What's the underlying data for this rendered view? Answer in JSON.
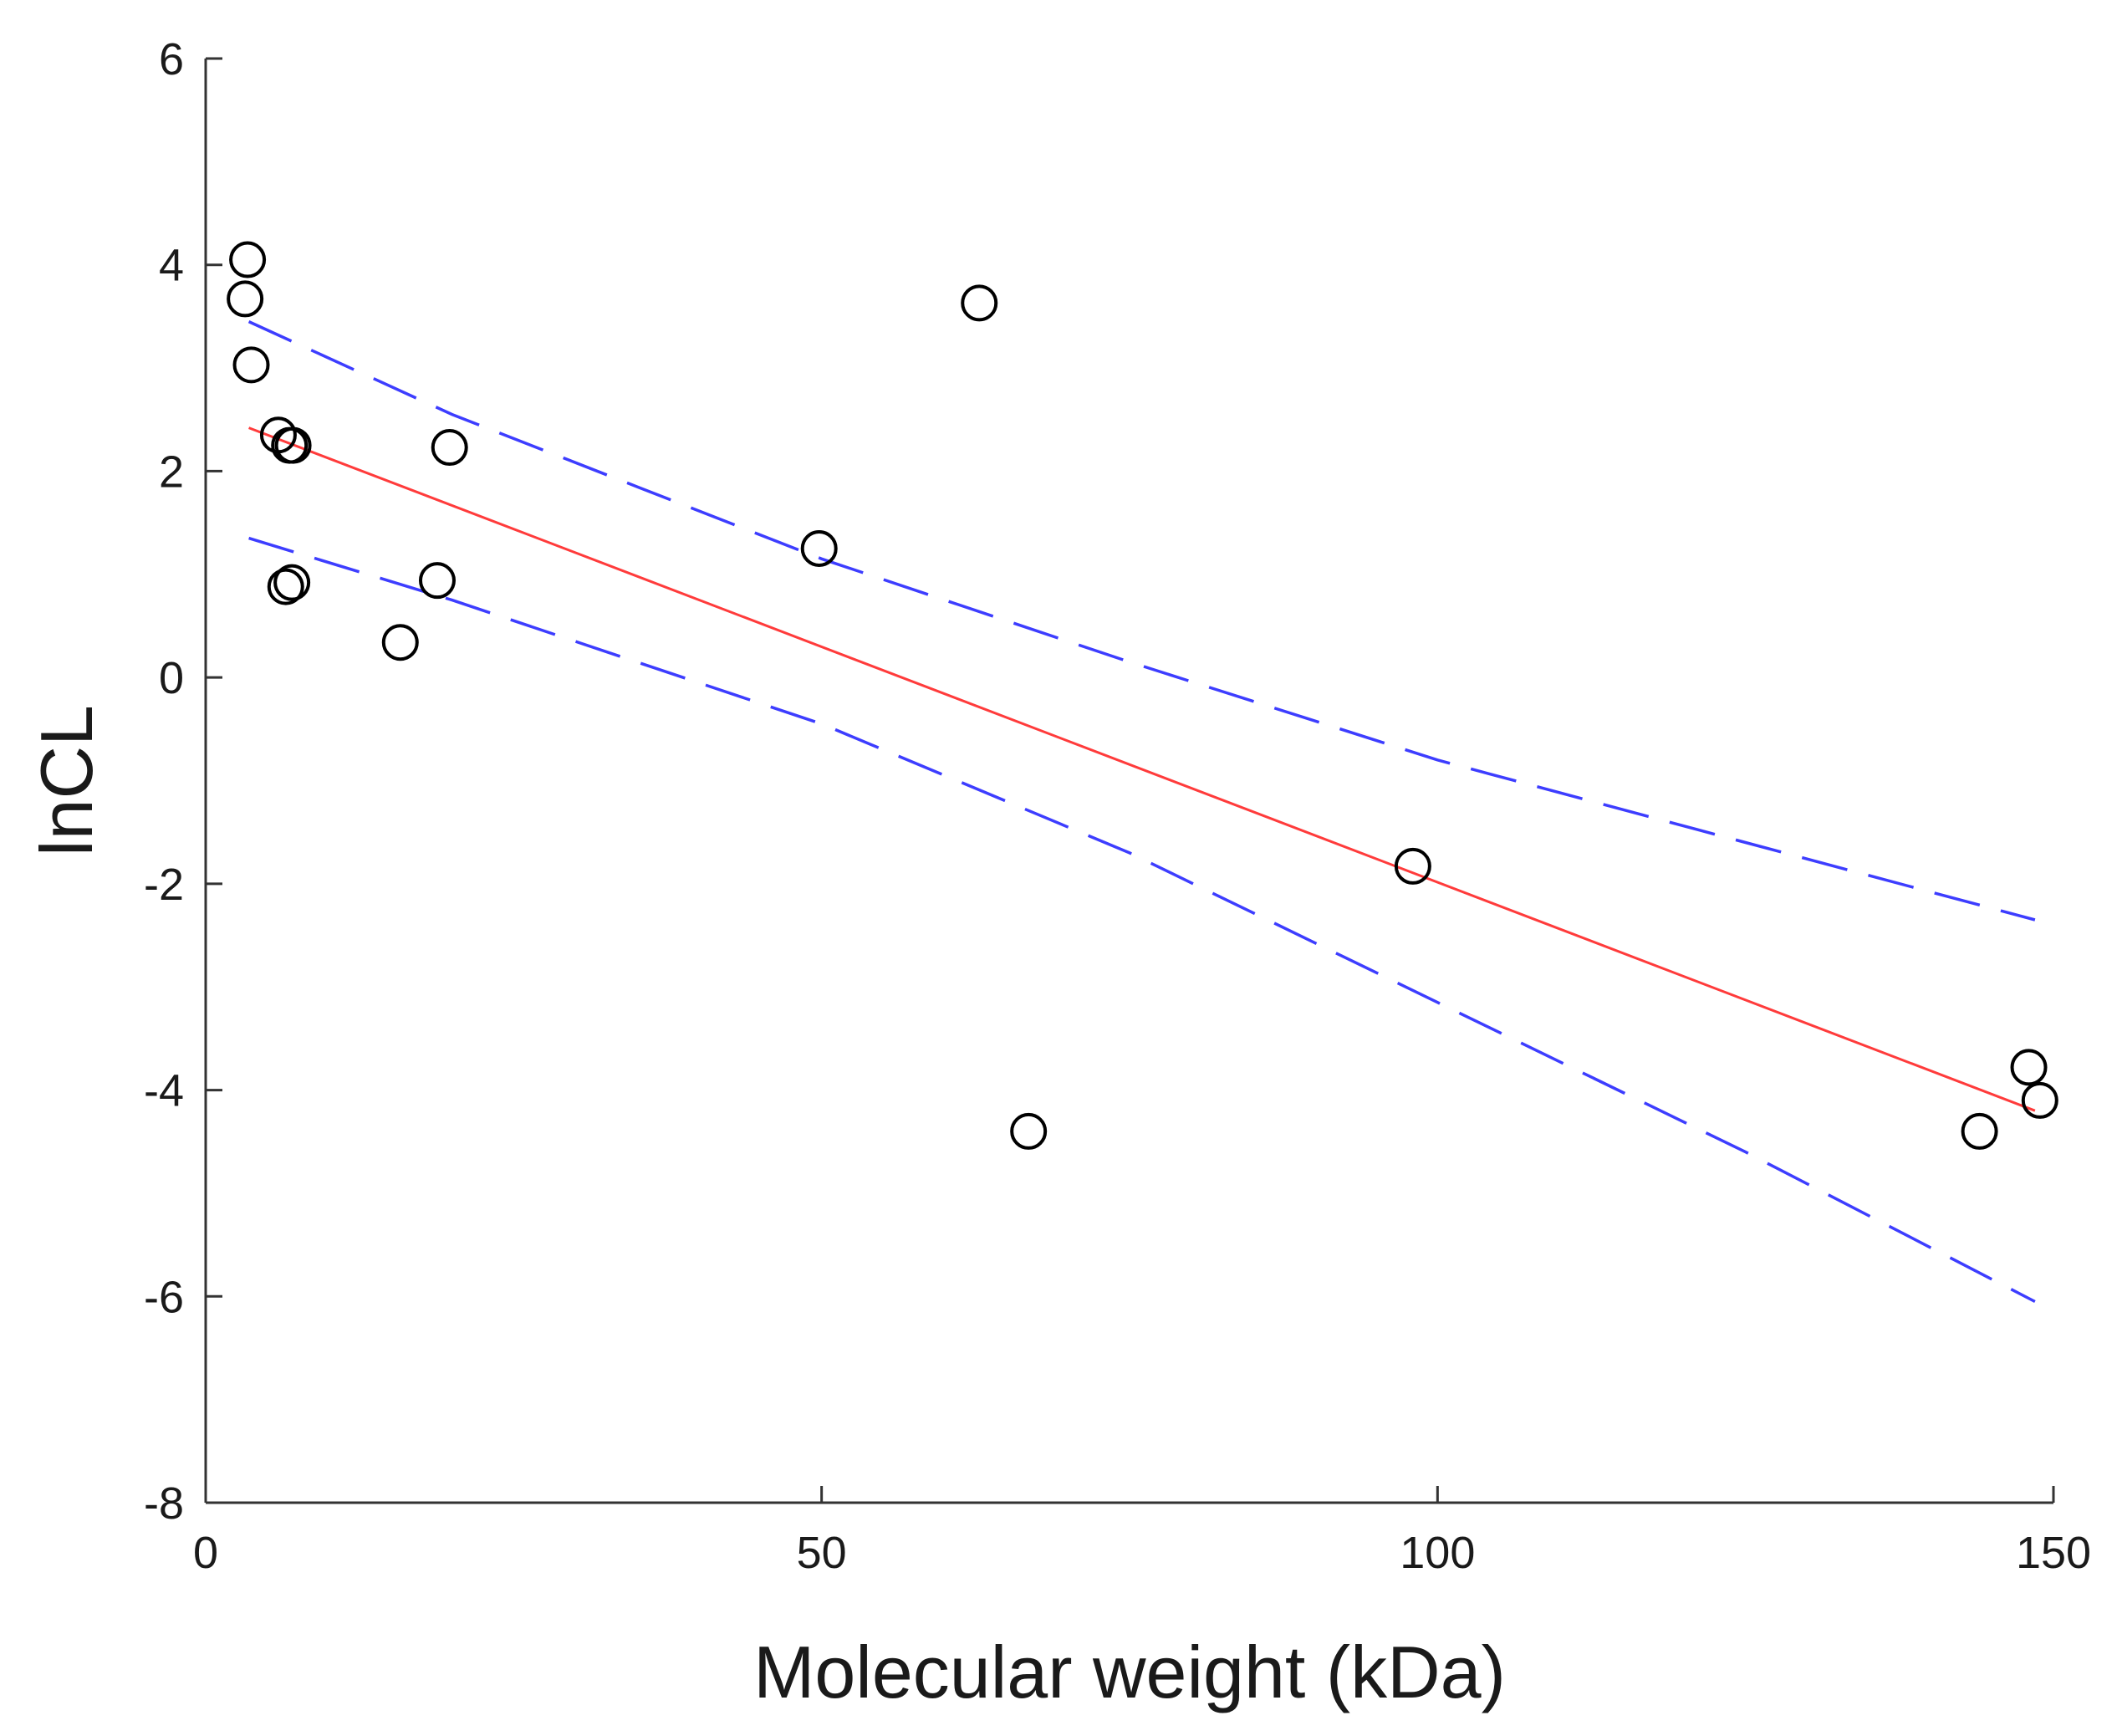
{
  "chart_data": {
    "type": "scatter",
    "xlabel": "Molecular weight (kDa)",
    "ylabel": "lnCL",
    "xlim": [
      0,
      150
    ],
    "ylim": [
      -8,
      6
    ],
    "x_ticks": [
      0,
      50,
      100,
      150
    ],
    "y_ticks": [
      6,
      4,
      2,
      0,
      -2,
      -4,
      -6,
      -8
    ],
    "grid": false,
    "colors": {
      "points": "#000000",
      "fit": "#ff3b3b",
      "confidence": "#3d3dff",
      "axis": "#333333"
    },
    "series": [
      {
        "name": "observed",
        "kind": "points",
        "x": [
          3.4,
          3.2,
          3.7,
          5.9,
          6.8,
          7.1,
          6.5,
          7.0,
          15.8,
          18.8,
          19.8,
          49.8,
          62.8,
          66.8,
          98.0,
          144.0,
          148.0,
          148.9
        ],
        "y": [
          4.05,
          3.67,
          3.03,
          2.35,
          2.25,
          2.25,
          0.88,
          0.92,
          0.34,
          0.94,
          2.23,
          1.25,
          3.63,
          -4.4,
          -1.83,
          -4.4,
          -3.78,
          -4.1
        ]
      },
      {
        "name": "regression",
        "kind": "line",
        "x": [
          3.5,
          148.5
        ],
        "y": [
          2.42,
          -4.2
        ]
      },
      {
        "name": "upper bound",
        "kind": "dashed",
        "x": [
          3.5,
          20,
          50,
          75,
          100,
          125,
          148.5
        ],
        "y": [
          3.45,
          2.55,
          1.15,
          0.15,
          -0.8,
          -1.6,
          -2.35
        ]
      },
      {
        "name": "lower bound",
        "kind": "dashed",
        "x": [
          3.5,
          20,
          50,
          75,
          100,
          125,
          148.5
        ],
        "y": [
          1.35,
          0.75,
          -0.45,
          -1.7,
          -3.15,
          -4.6,
          -6.05
        ]
      }
    ]
  }
}
